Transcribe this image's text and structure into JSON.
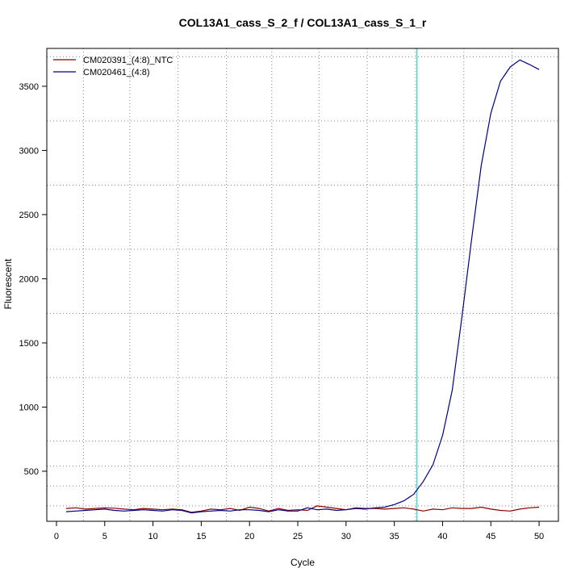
{
  "chart_data": {
    "type": "line",
    "title": "COL13A1_cass_S_2_f / COL13A1_cass_S_1_r",
    "xlabel": "Cycle",
    "ylabel": "Fluorescent",
    "xlim": [
      -1,
      52
    ],
    "ylim": [
      110,
      3795
    ],
    "x_ticks": [
      0,
      5,
      10,
      15,
      20,
      25,
      30,
      35,
      40,
      45,
      50
    ],
    "y_ticks": [
      500,
      1000,
      1500,
      2000,
      2500,
      3000,
      3500
    ],
    "grid": true,
    "grid_x": [
      2.8,
      7.6,
      12.6,
      17.6,
      22.3,
      27.2,
      32.2,
      37.2,
      42.2,
      47.2
    ],
    "grid_y": [
      230,
      385,
      540,
      735,
      1230,
      1730,
      2230,
      2730,
      3230,
      3730
    ],
    "threshold_x": 37.35,
    "threshold_color": "#00cccc",
    "legend_position": "top-left",
    "x": [
      1,
      2,
      3,
      4,
      5,
      6,
      7,
      8,
      9,
      10,
      11,
      12,
      13,
      14,
      15,
      16,
      17,
      18,
      19,
      20,
      21,
      22,
      23,
      24,
      25,
      26,
      27,
      28,
      29,
      30,
      31,
      32,
      33,
      34,
      35,
      36,
      37,
      38,
      39,
      40,
      41,
      42,
      43,
      44,
      45,
      46,
      47,
      48,
      49,
      50
    ],
    "series": [
      {
        "name": "CM020391_(4:8)_NTC",
        "color": "#8b0000",
        "values": [
          210,
          215,
          205,
          210,
          215,
          212,
          205,
          200,
          210,
          205,
          200,
          205,
          200,
          180,
          190,
          205,
          200,
          210,
          195,
          220,
          210,
          190,
          210,
          195,
          200,
          195,
          230,
          220,
          210,
          200,
          215,
          210,
          210,
          205,
          210,
          215,
          205,
          190,
          205,
          200,
          215,
          210,
          210,
          220,
          205,
          195,
          190,
          205,
          215,
          220
        ]
      },
      {
        "name": "CM020461_(4:8)",
        "color": "#000080",
        "values": [
          185,
          190,
          195,
          200,
          205,
          195,
          190,
          195,
          200,
          195,
          190,
          200,
          195,
          175,
          185,
          190,
          195,
          190,
          200,
          200,
          195,
          185,
          200,
          190,
          190,
          215,
          200,
          205,
          195,
          200,
          210,
          205,
          215,
          220,
          240,
          270,
          320,
          420,
          550,
          780,
          1130,
          1700,
          2300,
          2880,
          3290,
          3540,
          3650,
          3705,
          3670,
          3630
        ]
      }
    ]
  }
}
